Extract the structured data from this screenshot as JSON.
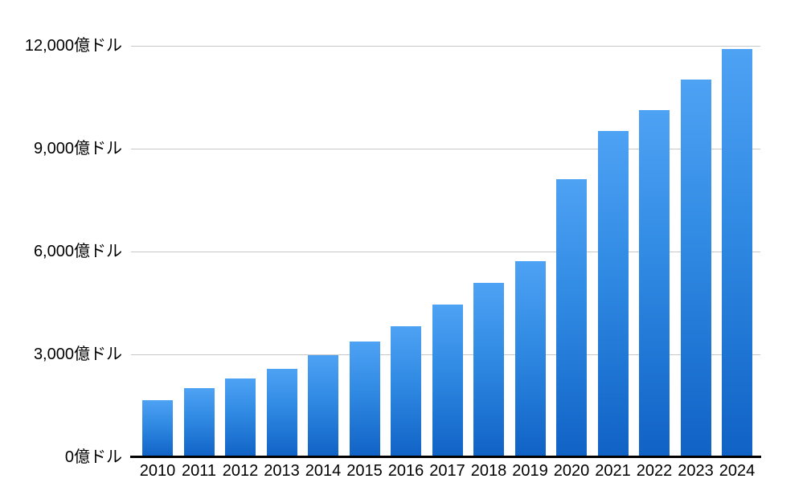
{
  "chart_data": {
    "type": "bar",
    "title": "",
    "xlabel": "",
    "ylabel": "",
    "unit": "億ドル",
    "categories": [
      "2010",
      "2011",
      "2012",
      "2013",
      "2014",
      "2015",
      "2016",
      "2017",
      "2018",
      "2019",
      "2020",
      "2021",
      "2022",
      "2023",
      "2024"
    ],
    "values": [
      1650,
      2000,
      2290,
      2570,
      2970,
      3370,
      3810,
      4450,
      5080,
      5710,
      8100,
      9520,
      10120,
      11010,
      11910
    ],
    "ylim": [
      0,
      12000
    ],
    "y_tick_interval": 3000,
    "y_tick_labels": [
      "0億ドル",
      "3,000億ドル",
      "6,000億ドル",
      "9,000億ドル",
      "12,000億ドル"
    ],
    "grid": "horizontal",
    "legend": "none",
    "colors": {
      "bar_gradient_top": "#4ea2f4",
      "bar_gradient_bottom": "#1062c5",
      "gridline": "#c7c7c7",
      "axis_line": "#000000",
      "label_text": "#000000",
      "background": "#ffffff"
    }
  }
}
